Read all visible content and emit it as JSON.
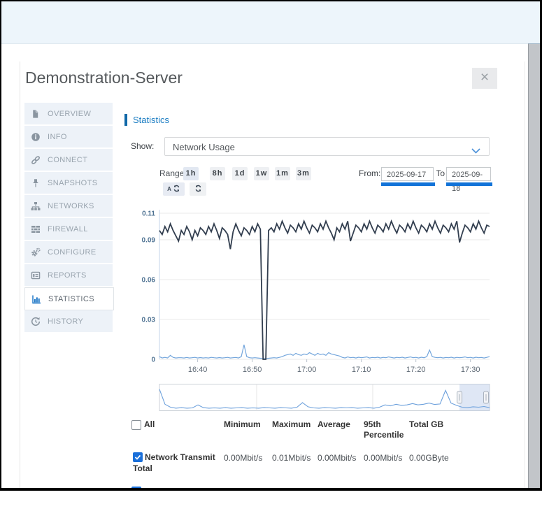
{
  "window": {
    "close_glyph": "×"
  },
  "modal": {
    "title": "Demonstration-Server"
  },
  "sidebar": {
    "items": [
      {
        "key": "overview",
        "label": "OVERVIEW",
        "icon": "file-icon",
        "active": false
      },
      {
        "key": "info",
        "label": "INFO",
        "icon": "info-icon",
        "active": false
      },
      {
        "key": "connect",
        "label": "CONNECT",
        "icon": "link-icon",
        "active": false
      },
      {
        "key": "snapshots",
        "label": "SNAPSHOTS",
        "icon": "pin-icon",
        "active": false
      },
      {
        "key": "networks",
        "label": "NETWORKS",
        "icon": "sitemap-icon",
        "active": false
      },
      {
        "key": "firewall",
        "label": "FIREWALL",
        "icon": "firewall-icon",
        "active": false
      },
      {
        "key": "configure",
        "label": "CONFIGURE",
        "icon": "gears-icon",
        "active": false
      },
      {
        "key": "reports",
        "label": "REPORTS",
        "icon": "report-icon",
        "active": false
      },
      {
        "key": "statistics",
        "label": "STATISTICS",
        "icon": "bar-chart-icon",
        "active": true
      },
      {
        "key": "history",
        "label": "HISTORY",
        "icon": "history-icon",
        "active": false
      }
    ]
  },
  "statistics": {
    "section_title": "Statistics",
    "show_label": "Show:",
    "show_value": "Network Usage",
    "range_label": "Range:",
    "range_options": [
      "1h",
      "8h",
      "1d",
      "1w",
      "1m",
      "3m"
    ],
    "range_active": "1h",
    "from_label": "From:",
    "to_label": "To:",
    "from_value": "2025-09-17",
    "to_value": "2025-09-18",
    "autorefresh_label": "A"
  },
  "chart_data": {
    "type": "line",
    "x_start": "16:33",
    "x_step_min": 0.5,
    "x_ticks": [
      "16:40",
      "16:50",
      "17:00",
      "17:10",
      "17:20",
      "17:30"
    ],
    "y_ticks": [
      0,
      0.03,
      0.06,
      0.09,
      0.11
    ],
    "ylim": [
      0,
      0.117
    ],
    "grid": true,
    "series": [
      {
        "id": "dark",
        "label": "",
        "color": "#323e4f",
        "values": [
          0.097,
          0.094,
          0.1,
          0.096,
          0.102,
          0.097,
          0.093,
          0.089,
          0.097,
          0.094,
          0.1,
          0.096,
          0.09,
          0.097,
          0.093,
          0.099,
          0.097,
          0.094,
          0.1,
          0.096,
          0.102,
          0.097,
          0.091,
          0.099,
          0.097,
          0.094,
          0.083,
          0.096,
          0.102,
          0.097,
          0.093,
          0.099,
          0.097,
          0.094,
          0.1,
          0.096,
          0.102,
          0.098,
          0.0,
          0.0,
          0.097,
          0.099,
          0.096,
          0.102,
          0.098,
          0.104,
          0.099,
          0.095,
          0.101,
          0.099,
          0.096,
          0.102,
          0.098,
          0.104,
          0.099,
          0.095,
          0.101,
          0.099,
          0.096,
          0.102,
          0.098,
          0.104,
          0.099,
          0.095,
          0.09,
          0.099,
          0.096,
          0.102,
          0.098,
          0.104,
          0.089,
          0.095,
          0.101,
          0.099,
          0.096,
          0.102,
          0.098,
          0.104,
          0.099,
          0.095,
          0.101,
          0.099,
          0.096,
          0.102,
          0.098,
          0.104,
          0.099,
          0.095,
          0.101,
          0.099,
          0.096,
          0.102,
          0.098,
          0.104,
          0.099,
          0.095,
          0.101,
          0.099,
          0.096,
          0.102,
          0.098,
          0.104,
          0.099,
          0.095,
          0.101,
          0.099,
          0.096,
          0.102,
          0.098,
          0.104,
          0.088,
          0.095,
          0.101,
          0.099,
          0.096,
          0.102,
          0.098,
          0.104,
          0.099,
          0.095,
          0.101,
          0.1
        ]
      },
      {
        "id": "light",
        "label": "Network Transmit Total",
        "color": "#74a6dc",
        "values": [
          0.002,
          0.001,
          0.0015,
          0.001,
          0.003,
          0.0015,
          0.001,
          0.0012,
          0.0012,
          0.001,
          0.0014,
          0.001,
          0.0012,
          0.0015,
          0.001,
          0.0013,
          0.001,
          0.0012,
          0.001,
          0.0015,
          0.0012,
          0.001,
          0.0013,
          0.001,
          0.0012,
          0.0015,
          0.001,
          0.0012,
          0.0014,
          0.001,
          0.002,
          0.011,
          0.002,
          0.0012,
          0.001,
          0.0012,
          0.001,
          0.0008,
          0.0005,
          0.0005,
          0.0008,
          0.001,
          0.0012,
          0.001,
          0.0015,
          0.002,
          0.003,
          0.0035,
          0.004,
          0.003,
          0.0045,
          0.0035,
          0.003,
          0.004,
          0.0035,
          0.005,
          0.004,
          0.003,
          0.0045,
          0.0035,
          0.004,
          0.003,
          0.005,
          0.004,
          0.0035,
          0.003,
          0.0025,
          0.0015,
          0.001,
          0.0018,
          0.0012,
          0.0015,
          0.001,
          0.0016,
          0.0012,
          0.0015,
          0.0018,
          0.001,
          0.0014,
          0.0012,
          0.0016,
          0.001,
          0.0015,
          0.0012,
          0.0018,
          0.0014,
          0.001,
          0.0015,
          0.0012,
          0.0016,
          0.001,
          0.0014,
          0.0018,
          0.0012,
          0.0015,
          0.001,
          0.0016,
          0.0012,
          0.002,
          0.007,
          0.002,
          0.0015,
          0.0012,
          0.0015,
          0.001,
          0.0014,
          0.0012,
          0.0016,
          0.001,
          0.0015,
          0.0012,
          0.0014,
          0.0018,
          0.0012,
          0.0015,
          0.001,
          0.0016,
          0.0012,
          0.0014,
          0.001,
          0.0015,
          0.002
        ]
      }
    ],
    "navigator": {
      "color": "#6ca0dc",
      "selection": [
        0.909,
        1.0
      ],
      "values": [
        0.9,
        0.25,
        0.12,
        0.08,
        0.1,
        0.08,
        0.09,
        0.22,
        0.1,
        0.08,
        0.09,
        0.08,
        0.1,
        0.08,
        0.09,
        0.1,
        0.08,
        0.09,
        0.08,
        0.1,
        0.09,
        0.08,
        0.1,
        0.09,
        0.08,
        0.12,
        0.32,
        0.14,
        0.09,
        0.08,
        0.1,
        0.09,
        0.08,
        0.1,
        0.09,
        0.1,
        0.08,
        0.09,
        0.1,
        0.08,
        0.12,
        0.22,
        0.18,
        0.25,
        0.2,
        0.22,
        0.28,
        0.22,
        0.25,
        0.3,
        0.24,
        0.26,
        0.85,
        0.3,
        0.2,
        0.12,
        0.1,
        0.14,
        0.12,
        0.15,
        0.1
      ]
    }
  },
  "table": {
    "all_label": "All",
    "columns": [
      "Minimum",
      "Maximum",
      "Average",
      "95th Percentile",
      "Total GB"
    ],
    "rows": [
      {
        "label": "Network Transmit Total",
        "checked": true,
        "values": [
          "0.00Mbit/s",
          "0.01Mbit/s",
          "0.00Mbit/s",
          "0.00Mbit/s",
          "0.00GByte"
        ]
      }
    ]
  },
  "colors": {
    "accent_blue": "#1273d8",
    "section_blue": "#1a7cc2",
    "active_icon_blue": "#1270c4",
    "checkbox_blue": "#1a6fd9",
    "dark_series": "#323e4f",
    "light_series": "#74a6dc",
    "topstrip": "#edf5fb",
    "sidebar_bg": "#edf2f8"
  }
}
